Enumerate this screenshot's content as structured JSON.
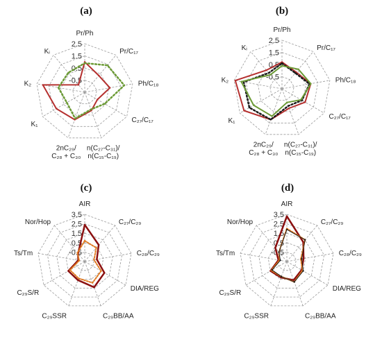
{
  "colors": {
    "red": "#b5302f",
    "darkred": "#8b1010",
    "green": "#6b9a35",
    "black": "#1a1a1a",
    "orange": "#e07a22",
    "grid": "#9a9a9a"
  },
  "chart_data": [
    {
      "panel": "(a)",
      "type": "radar",
      "axes": [
        "Pr/Ph",
        "Pr/C17",
        "Ph/C18",
        "C27/C17",
        "n(C27-C31)/n(C15-C19)",
        "2nC29/C28 + C30",
        "K1",
        "K2",
        "Ki"
      ],
      "axis_lines": [
        [
          "Pr/Ph"
        ],
        [
          "Pr/C₁₇"
        ],
        [
          "Ph/C₁₈"
        ],
        [
          "C₂₇/C₁₇"
        ],
        [
          "n(C₂₇-C₃₁)/",
          "n(C₁₅-C₁₉)"
        ],
        [
          "2nC₂₉/",
          "C₂₈ + C₃₀"
        ],
        [
          "K₁"
        ],
        [
          "K₂"
        ],
        [
          "Kᵢ"
        ]
      ],
      "ticks": [
        "2.5",
        "1.5",
        "0.5",
        "-0.5"
      ],
      "rmin": -1.5,
      "rmax": 2.5,
      "series": [
        {
          "color": "red",
          "width": 2,
          "dash": "",
          "values": [
            1.0,
            0.3,
            0.6,
            -0.3,
            0.1,
            0.9,
            1.2,
            2.0,
            -0.7
          ]
        },
        {
          "color": "green",
          "width": 2.5,
          "dash": "2 3",
          "values": [
            0.9,
            1.4,
            1.8,
            0.4,
            0.0,
            0.8,
            0.2,
            0.7,
            0.6
          ]
        }
      ]
    },
    {
      "panel": "(b)",
      "type": "radar",
      "axes": [
        "Pr/Ph",
        "Pr/C17",
        "Ph/C18",
        "C27/C17",
        "n(C27-C31)/n(C15-C19)",
        "2nC29/C28 + C30",
        "K1",
        "K2",
        "Ki"
      ],
      "axis_lines": [
        [
          "Pr/Ph"
        ],
        [
          "Pr/C₁₇"
        ],
        [
          "Ph/C₁₈"
        ],
        [
          "C₂₇/C₁₇"
        ],
        [
          "n(C₂₇-C₃₁)/",
          "n(C₁₅-C₁₉)"
        ],
        [
          "2nC₂₉/",
          "C₂₈ + C₃₀"
        ],
        [
          "K₁"
        ],
        [
          "K₂"
        ],
        [
          "Kᵢ"
        ]
      ],
      "ticks": [
        "2.5",
        "1.5",
        "0.5",
        "-0.5"
      ],
      "rmin": -1.5,
      "rmax": 2.5,
      "series": [
        {
          "color": "red",
          "width": 2,
          "dash": "",
          "values": [
            0.7,
            0.3,
            0.9,
            0.7,
            0.2,
            1.2,
            2.1,
            2.4,
            0.5
          ]
        },
        {
          "color": "black",
          "width": 2.5,
          "dash": "2 3",
          "values": [
            0.6,
            0.2,
            0.8,
            0.4,
            0.0,
            1.2,
            1.6,
            1.7,
            0.2
          ]
        },
        {
          "color": "green",
          "width": 2,
          "dash": "",
          "values": [
            0.4,
            0.6,
            0.9,
            0.3,
            -0.3,
            0.9,
            1.2,
            1.9,
            0.0
          ]
        }
      ]
    },
    {
      "panel": "(c)",
      "type": "radar",
      "axes": [
        "AIR",
        "C27/C29",
        "C28/C29",
        "DIA/REG",
        "C29BB/AA",
        "C29SSR",
        "C29S/R",
        "Ts/Tm",
        "Nor/Hop"
      ],
      "axis_lines": [
        [
          "AIR"
        ],
        [
          "C₂₇/C₂₉"
        ],
        [
          "C₂₈/C₂₉"
        ],
        [
          "DIA/REG"
        ],
        [
          "C₂₉BB/AA"
        ],
        [
          "C₂₉SSR"
        ],
        [
          "C₂₉S/R"
        ],
        [
          "Ts/Tm"
        ],
        [
          "Nor/Hop"
        ]
      ],
      "ticks": [
        "3.5",
        "2.5",
        "1.5",
        "0.5",
        "-0.5"
      ],
      "rmin": -1.5,
      "rmax": 3.5,
      "series": [
        {
          "color": "darkred",
          "width": 2.5,
          "dash": "",
          "values": [
            2.4,
            0.8,
            -0.2,
            0.9,
            1.4,
            0.6,
            0.5,
            -0.8,
            -0.4
          ]
        },
        {
          "color": "orange",
          "width": 2,
          "dash": "2 2",
          "values": [
            0.7,
            0.4,
            -0.5,
            0.5,
            0.9,
            0.4,
            0.3,
            -0.9,
            -0.3
          ]
        }
      ]
    },
    {
      "panel": "(d)",
      "type": "radar",
      "axes": [
        "AIR",
        "C27/C29",
        "C28/C29",
        "DIA/REG",
        "C29BB/AA",
        "C29SSR",
        "C29S/R",
        "Ts/Tm",
        "Nor/Hop"
      ],
      "axis_lines": [
        [
          "AIR"
        ],
        [
          "C₂₇/C₂₉"
        ],
        [
          "C₂₈/C₂₉"
        ],
        [
          "DIA/REG"
        ],
        [
          "C₂₉BB/AA"
        ],
        [
          "C₂₉SSR"
        ],
        [
          "C₂₉S/R"
        ],
        [
          "Ts/Tm"
        ],
        [
          "Nor/Hop"
        ]
      ],
      "ticks": [
        "3.5",
        "2.5",
        "1.5",
        "0.5",
        "-0.5"
      ],
      "rmin": -1.5,
      "rmax": 3.5,
      "series": [
        {
          "color": "darkred",
          "width": 2.5,
          "dash": "",
          "values": [
            3.3,
            1.2,
            0.3,
            0.3,
            0.6,
            0.3,
            0.5,
            -0.6,
            0.4
          ]
        },
        {
          "color": "orange",
          "width": 2,
          "dash": "2 2",
          "values": [
            2.0,
            1.5,
            0.0,
            0.4,
            0.8,
            0.2,
            0.4,
            -0.7,
            -0.2
          ]
        },
        {
          "color": "black",
          "width": 1,
          "dash": "",
          "values": [
            1.9,
            1.5,
            0.1,
            0.5,
            0.8,
            0.2,
            0.3,
            -0.8,
            -0.2
          ]
        }
      ]
    }
  ]
}
